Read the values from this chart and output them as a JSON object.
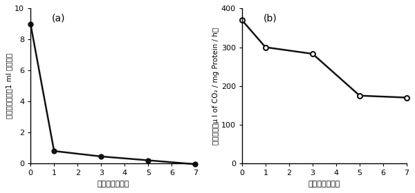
{
  "panel_a": {
    "label": "(a)",
    "x": [
      0,
      1,
      3,
      5,
      7
    ],
    "y": [
      9.0,
      0.8,
      0.45,
      0.2,
      -0.05
    ],
    "xlabel": "贯蔵期間（日）",
    "ylabel": "生菌数の対数（1 ml 当たり）",
    "ylim": [
      0,
      10
    ],
    "yticks": [
      0,
      2,
      4,
      6,
      8,
      10
    ],
    "xticks": [
      0,
      1,
      2,
      3,
      4,
      5,
      6,
      7
    ]
  },
  "panel_b": {
    "label": "(b)",
    "x": [
      0,
      1,
      3,
      5,
      7
    ],
    "y": [
      370,
      300,
      283,
      175,
      170
    ],
    "xlabel": "贯蔵期間（日）",
    "ylabel": "酵素活性（μ l of CO₂ / mg Protein / h）",
    "ylim": [
      0,
      400
    ],
    "yticks": [
      0,
      100,
      200,
      300,
      400
    ],
    "xticks": [
      0,
      1,
      2,
      3,
      4,
      5,
      6,
      7
    ]
  },
  "background_color": "#ffffff",
  "line_color": "#111111",
  "linewidth": 1.8,
  "markersize": 5
}
